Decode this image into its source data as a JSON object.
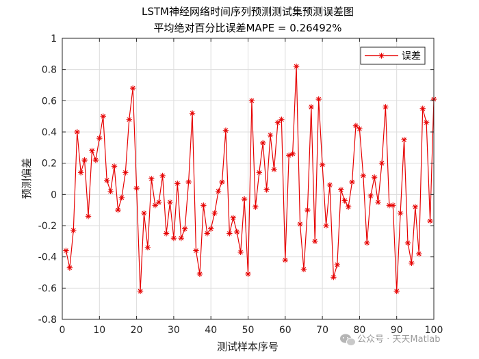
{
  "chart_data": {
    "type": "line",
    "title": [
      "LSTM神经网络时间序列预测测试集预测误差图",
      "平均绝对百分比误差MAPE = 0.26492%"
    ],
    "xlabel": "测试样本序号",
    "ylabel": "预测偏差",
    "xlim": [
      0,
      100
    ],
    "ylim": [
      -0.8,
      1
    ],
    "xticks": [
      0,
      10,
      20,
      30,
      40,
      50,
      60,
      70,
      80,
      90,
      100
    ],
    "yticks": [
      -0.8,
      -0.6,
      -0.4,
      -0.2,
      0,
      0.2,
      0.4,
      0.6,
      0.8,
      1
    ],
    "grid": true,
    "legend_position": "top-right",
    "series": [
      {
        "name": "误差",
        "color": "#e60000",
        "marker": "asterisk",
        "x": [
          1,
          2,
          3,
          4,
          5,
          6,
          7,
          8,
          9,
          10,
          11,
          12,
          13,
          14,
          15,
          16,
          17,
          18,
          19,
          20,
          21,
          22,
          23,
          24,
          25,
          26,
          27,
          28,
          29,
          30,
          31,
          32,
          33,
          34,
          35,
          36,
          37,
          38,
          39,
          40,
          41,
          42,
          43,
          44,
          45,
          46,
          47,
          48,
          49,
          50,
          51,
          52,
          53,
          54,
          55,
          56,
          57,
          58,
          59,
          60,
          61,
          62,
          63,
          64,
          65,
          66,
          67,
          68,
          69,
          70,
          71,
          72,
          73,
          74,
          75,
          76,
          77,
          78,
          79,
          80,
          81,
          82,
          83,
          84,
          85,
          86,
          87,
          88,
          89,
          90,
          91,
          92,
          93,
          94,
          95,
          96,
          97,
          98,
          99,
          100
        ],
        "values": [
          -0.36,
          -0.47,
          -0.23,
          0.4,
          0.14,
          0.22,
          -0.14,
          0.28,
          0.22,
          0.36,
          0.5,
          0.09,
          0.02,
          0.18,
          -0.1,
          -0.02,
          0.14,
          0.48,
          0.68,
          0.04,
          -0.62,
          -0.12,
          -0.34,
          0.1,
          -0.07,
          -0.05,
          0.12,
          -0.25,
          -0.05,
          -0.28,
          0.07,
          -0.28,
          -0.22,
          0.08,
          0.52,
          -0.36,
          -0.51,
          -0.07,
          -0.25,
          -0.22,
          -0.12,
          0.02,
          0.08,
          0.41,
          -0.25,
          -0.15,
          -0.24,
          -0.37,
          -0.03,
          -0.51,
          0.6,
          -0.08,
          0.14,
          0.33,
          0.03,
          0.38,
          0.16,
          0.46,
          0.48,
          -0.42,
          0.25,
          0.26,
          0.82,
          -0.19,
          -0.48,
          -0.1,
          0.56,
          -0.3,
          0.61,
          0.19,
          -0.2,
          0.06,
          -0.53,
          -0.45,
          0.03,
          -0.04,
          -0.08,
          0.08,
          0.44,
          0.42,
          0.12,
          -0.31,
          -0.01,
          0.11,
          -0.05,
          0.2,
          0.56,
          -0.07,
          -0.07,
          -0.62,
          -0.12,
          0.35,
          -0.31,
          -0.44,
          -0.08,
          -0.38,
          0.55,
          0.46,
          -0.17,
          0.61
        ]
      }
    ]
  },
  "watermark": {
    "icon": "wechat-icon",
    "text": "公众号 · 天天Matlab"
  }
}
